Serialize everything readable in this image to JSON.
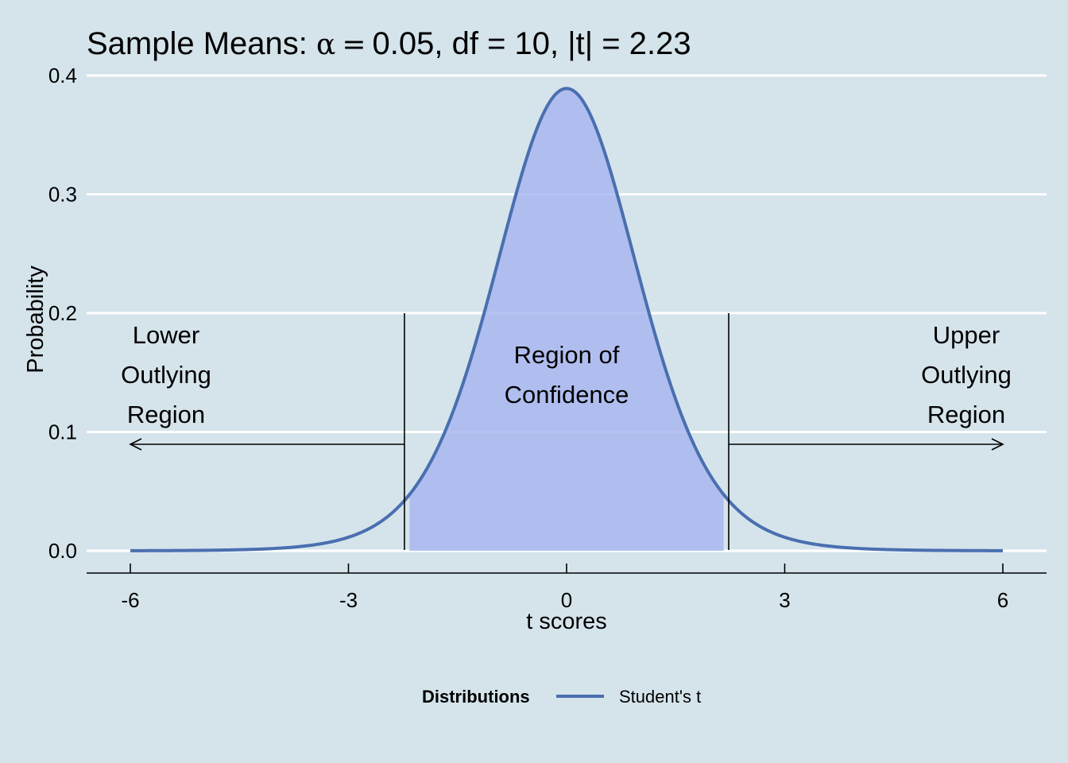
{
  "title": {
    "prefix": "Sample Means: ",
    "alpha_symbol": "α",
    "equals": "=",
    "suffix": "0.05, df = 10, |t| = 2.23"
  },
  "chart_data": {
    "type": "line",
    "distribution": "Student's t",
    "df": 10,
    "alpha": 0.05,
    "critical_t": 2.23,
    "xlabel": "t scores",
    "ylabel": "Probability",
    "xlim": [
      -6,
      6
    ],
    "ylim": [
      0,
      0.4
    ],
    "x_ticks": [
      -6,
      -3,
      0,
      3,
      6
    ],
    "x_tick_labels": [
      "-6",
      "-3",
      "0",
      "3",
      "6"
    ],
    "y_ticks": [
      0,
      0.1,
      0.2,
      0.3,
      0.4
    ],
    "y_tick_labels": [
      "0.0",
      "0.1",
      "0.2",
      "0.3",
      "0.4"
    ],
    "grid": "horizontal major",
    "series": [
      {
        "name": "Student's t",
        "color": "#4a6fb0"
      }
    ],
    "shaded_region": {
      "from": -2.23,
      "to": 2.23,
      "color": "#a9b7f0"
    },
    "annotations": {
      "lower": [
        "Lower",
        "Outlying",
        "Region"
      ],
      "center": [
        "Region of",
        "Confidence"
      ],
      "upper": [
        "Upper",
        "Outlying",
        "Region"
      ]
    },
    "legend": {
      "title": "Distributions",
      "position": "bottom"
    }
  },
  "colors": {
    "background": "#d5e4eb",
    "curve": "#4a6fb0",
    "fill": "#a9b7f0",
    "grid": "#ffffff"
  }
}
